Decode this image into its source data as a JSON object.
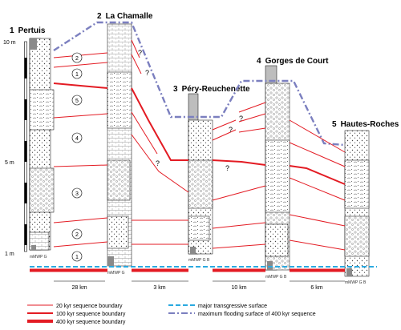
{
  "sections": [
    {
      "number": "1",
      "name": "Pertuis",
      "facies_axis": "mMWP G"
    },
    {
      "number": "2",
      "name": "La Chamalle",
      "facies_axis": "mMWP G"
    },
    {
      "number": "3",
      "name": "Péry-Reuchenette",
      "facies_axis": "mMWP G B"
    },
    {
      "number": "4",
      "name": "Gorges de Court",
      "facies_axis": "mMWP G B"
    },
    {
      "number": "5",
      "name": "Hautes-Roches",
      "facies_axis": "mMWP G B"
    }
  ],
  "scale": {
    "labels": [
      "10 m",
      "5 m",
      "1 m"
    ]
  },
  "distances": [
    "28 km",
    "3 km",
    "10 km",
    "6 km"
  ],
  "sequence_numbers": [
    "2",
    "1",
    "5",
    "4",
    "3",
    "2",
    "1"
  ],
  "question_mark": "?",
  "legend": {
    "items": [
      {
        "label": "20 kyr sequence boundary",
        "color": "#e31b23"
      },
      {
        "label": "100 kyr sequence boundary",
        "color": "#e31b23"
      },
      {
        "label": "400 kyr sequence boundary",
        "color": "#e31b23"
      },
      {
        "label": "major transgressive surface",
        "color": "#2aa9e0"
      },
      {
        "label": "maximum flooding surface of 400 kyr sequence",
        "color": "#7b7fbf"
      }
    ]
  },
  "colors": {
    "red": "#e31b23",
    "blue": "#2aa9e0",
    "purple": "#7b7fbf",
    "gray": "#bdbdbd"
  }
}
